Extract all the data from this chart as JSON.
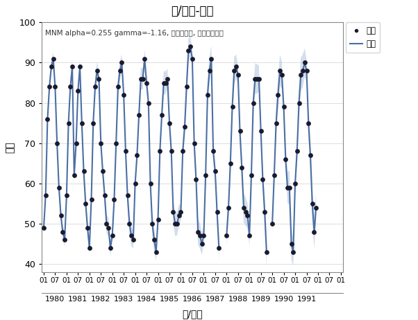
{
  "title": "月/年份-温度",
  "xlabel": "月/年份",
  "ylabel": "温度",
  "annotation": "MNM alpha=0.255 gamma=-1.16, 跳过缺失值, 间距重复填充",
  "legend_dot": "温度",
  "legend_line": "温度",
  "ylim": [
    38,
    100
  ],
  "line_color": "#4a6fa5",
  "band_color": "#b0c4de",
  "dot_color": "#1a1a2e",
  "background_color": "#ffffff",
  "full_temps": [
    49,
    57,
    76,
    84,
    89,
    91,
    84,
    70,
    59,
    52,
    48,
    46,
    57,
    75,
    84,
    89,
    62,
    70,
    83,
    89,
    75,
    63,
    55,
    49,
    44,
    56,
    75,
    84,
    88,
    86,
    70,
    63,
    57,
    50,
    49,
    44,
    47,
    56,
    70,
    84,
    88,
    90,
    82,
    68,
    57,
    50,
    47,
    46,
    60,
    67,
    77,
    86,
    86,
    91,
    85,
    80,
    60,
    50,
    46,
    43,
    51,
    68,
    77,
    85,
    85,
    86,
    75,
    68,
    53,
    50,
    50,
    52,
    53,
    68,
    74,
    84,
    93,
    94,
    91,
    70,
    61,
    48,
    47,
    45,
    47,
    62,
    82,
    88,
    91,
    68,
    63,
    53,
    44,
    null,
    null,
    null,
    47,
    54,
    65,
    79,
    88,
    89,
    87,
    73,
    64,
    54,
    53,
    52,
    47,
    62,
    80,
    86,
    86,
    86,
    73,
    61,
    53,
    43,
    null,
    null,
    50,
    62,
    75,
    82,
    88,
    87,
    79,
    66,
    59,
    59,
    45,
    43,
    60,
    68,
    80,
    87,
    88,
    90,
    88,
    75,
    67,
    55,
    48,
    54
  ],
  "yticks": [
    40,
    50,
    60,
    70,
    80,
    90,
    100
  ],
  "month_tick_pos": [
    0,
    6,
    12,
    18,
    24,
    30,
    36,
    42,
    48,
    54,
    60,
    66,
    72,
    78,
    84,
    90,
    96,
    102,
    108,
    114,
    120,
    126,
    132,
    138,
    144,
    150,
    156
  ],
  "month_tick_labels": [
    "01",
    "07",
    "01",
    "07",
    "01",
    "07",
    "01",
    "07",
    "01",
    "07",
    "01",
    "07",
    "01",
    "07",
    "01",
    "07",
    "01",
    "07",
    "01",
    "07",
    "01",
    "07",
    "01",
    "07",
    "01",
    "07",
    "01"
  ],
  "year_tick_pos": [
    6,
    18,
    30,
    42,
    54,
    66,
    78,
    90,
    102,
    114,
    126,
    138,
    150
  ],
  "year_labels": [
    "1980",
    "1981",
    "1982",
    "1983",
    "1984",
    "1985",
    "1986",
    "1987",
    "1988",
    "1989",
    "1990",
    "1991",
    ""
  ]
}
